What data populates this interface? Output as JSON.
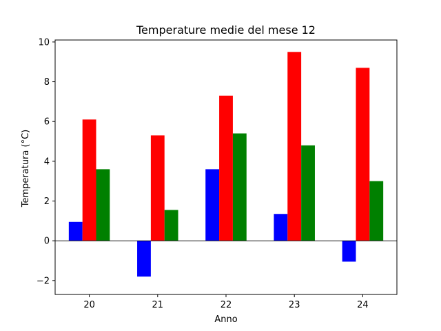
{
  "chart_data": {
    "type": "bar",
    "title": "Temperature medie del mese 12",
    "xlabel": "Anno",
    "ylabel": "Temperatura (°C)",
    "categories": [
      "20",
      "21",
      "22",
      "23",
      "24"
    ],
    "series": [
      {
        "color": "#0000ff",
        "values": [
          0.95,
          -1.8,
          3.6,
          1.35,
          -1.05
        ]
      },
      {
        "color": "#ff0000",
        "values": [
          6.1,
          5.3,
          7.3,
          9.5,
          8.7
        ]
      },
      {
        "color": "#008000",
        "values": [
          3.6,
          1.55,
          5.4,
          4.8,
          3.0
        ]
      }
    ],
    "ylim": [
      -2.7,
      10.1
    ],
    "yticks": [
      -2,
      0,
      2,
      4,
      6,
      8,
      10
    ],
    "ytick_labels": [
      "−2",
      "0",
      "2",
      "4",
      "6",
      "8",
      "10"
    ],
    "zero_line": true,
    "grid": false
  }
}
